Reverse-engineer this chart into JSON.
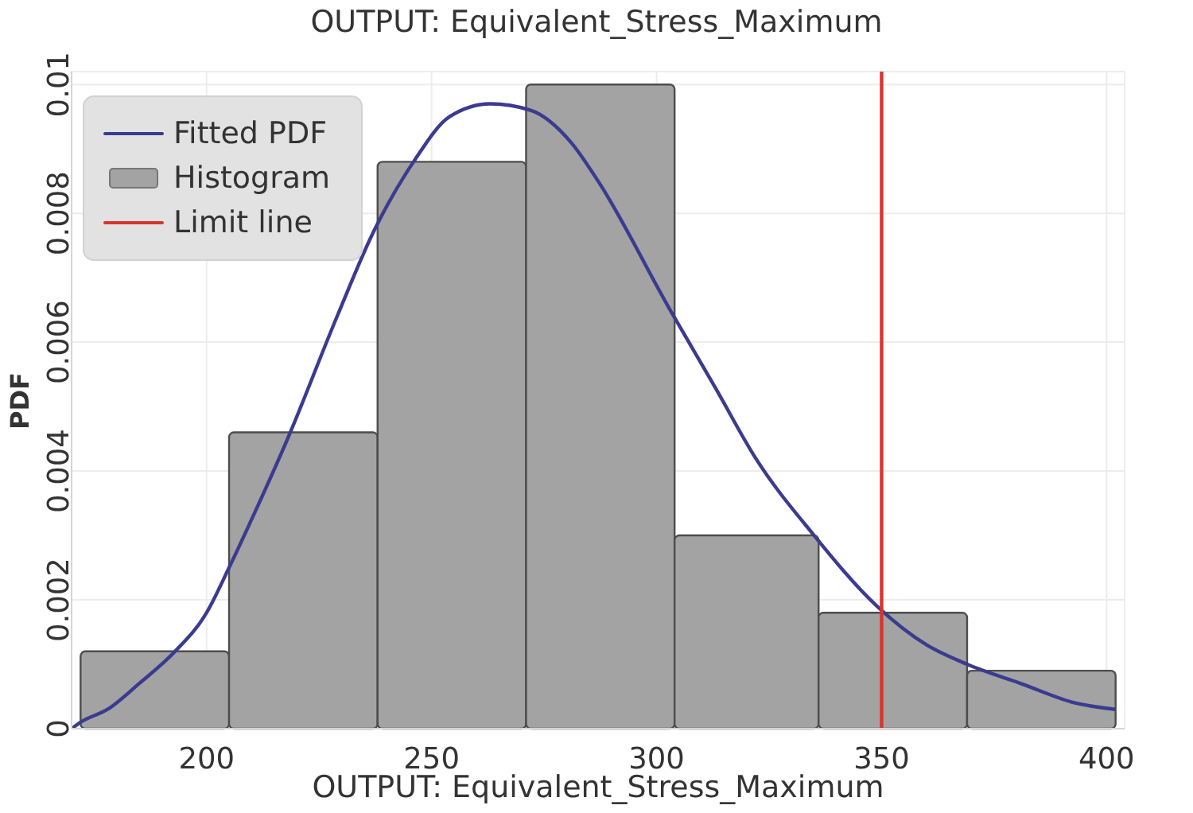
{
  "chart_data": {
    "type": "histogram",
    "title": "OUTPUT: Equivalent_Stress_Maximum",
    "xlabel": "OUTPUT: Equivalent_Stress_Maximum",
    "ylabel": "PDF",
    "series": [
      {
        "type": "line",
        "name": "Fitted PDF",
        "color": "#3b3b8f",
        "x": [
          170,
          172,
          178,
          185,
          193,
          200,
          205,
          211,
          218,
          229,
          237,
          246,
          254,
          263,
          272,
          281,
          287,
          303,
          313,
          322,
          335,
          349,
          360,
          369,
          381,
          393,
          402
        ],
        "values": [
          0,
          0.0001,
          0.0003,
          0.0007,
          0.0012,
          0.0018,
          0.0025,
          0.0034,
          0.0045,
          0.0064,
          0.0077,
          0.0088,
          0.0095,
          0.0097,
          0.0096,
          0.0091,
          0.0085,
          0.0065,
          0.0053,
          0.0042,
          0.003,
          0.0019,
          0.0013,
          0.001,
          0.0007,
          0.0004,
          0.0003
        ]
      },
      {
        "name": "Histogram",
        "color": "#a3a3a3",
        "bins": [
          172,
          205,
          238,
          271,
          304,
          336,
          369,
          402
        ],
        "values": [
          0.0012,
          0.0046,
          0.0088,
          0.01,
          0.003,
          0.0018,
          0.0009
        ]
      },
      {
        "type": "line",
        "name": "Limit line",
        "color": "#d8352a",
        "x": [
          350,
          350
        ],
        "values": [
          0,
          0.0102
        ]
      }
    ],
    "xlim": [
      170,
      404
    ],
    "xticks": [
      200,
      250,
      300,
      350,
      400
    ],
    "ylim": [
      0,
      0.0102
    ],
    "yticks": [
      0,
      0.002,
      0.004,
      0.006,
      0.008,
      0.01
    ],
    "grid": true,
    "legend": "top left"
  }
}
